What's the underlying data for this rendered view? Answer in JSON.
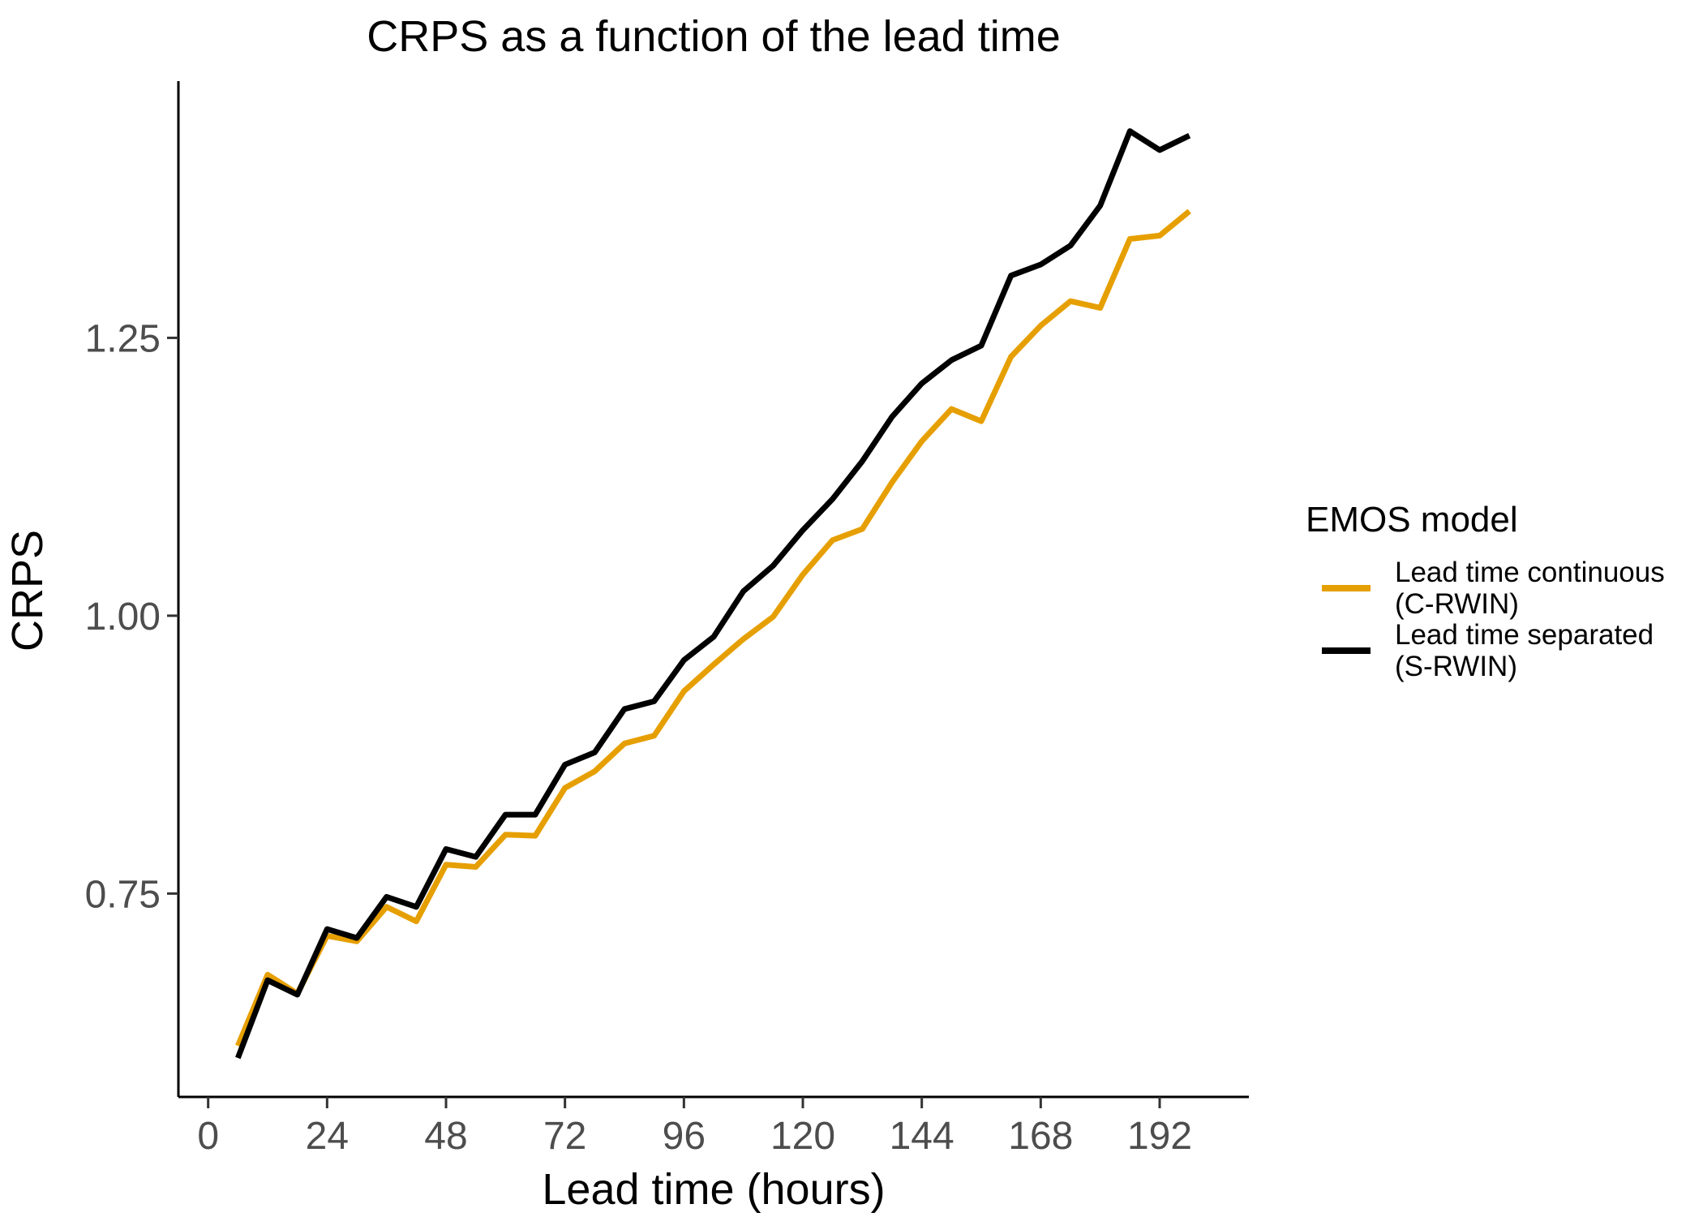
{
  "chart_data": {
    "type": "line",
    "title": "CRPS as a function of the lead time",
    "xlabel": "Lead time (hours)",
    "ylabel": "CRPS",
    "xlim": [
      -6,
      210
    ],
    "ylim": [
      0.567,
      1.481
    ],
    "x_ticks": [
      0,
      24,
      48,
      72,
      96,
      120,
      144,
      168,
      192
    ],
    "x_tick_labels": [
      "0",
      "24",
      "48",
      "72",
      "96",
      "120",
      "144",
      "168",
      "192"
    ],
    "y_ticks": [
      0.75,
      1.0,
      1.25
    ],
    "y_tick_labels": [
      "0.75",
      "1.00",
      "1.25"
    ],
    "grid": false,
    "legend": {
      "title": "EMOS model",
      "placement": "right"
    },
    "x": [
      6,
      12,
      18,
      24,
      30,
      36,
      42,
      48,
      54,
      60,
      66,
      72,
      78,
      84,
      90,
      96,
      102,
      108,
      114,
      120,
      126,
      132,
      138,
      144,
      150,
      156,
      162,
      168,
      174,
      180,
      186,
      192,
      198
    ],
    "series": [
      {
        "name": "Lead time continuous\n(C-RWIN)",
        "name_lines": [
          "Lead time continuous",
          "(C-RWIN)"
        ],
        "color": "#E69F00",
        "values": [
          0.613,
          0.677,
          0.66,
          0.712,
          0.707,
          0.738,
          0.725,
          0.776,
          0.774,
          0.803,
          0.802,
          0.845,
          0.86,
          0.885,
          0.892,
          0.932,
          0.956,
          0.979,
          0.999,
          1.037,
          1.068,
          1.078,
          1.12,
          1.157,
          1.186,
          1.175,
          1.233,
          1.261,
          1.283,
          1.277,
          1.339,
          1.342,
          1.364
        ]
      },
      {
        "name": "Lead time separated\n(S-RWIN)",
        "name_lines": [
          "Lead time separated",
          "(S-RWIN)"
        ],
        "color": "#000000",
        "values": [
          0.602,
          0.672,
          0.659,
          0.718,
          0.71,
          0.747,
          0.738,
          0.79,
          0.783,
          0.821,
          0.821,
          0.866,
          0.877,
          0.916,
          0.923,
          0.96,
          0.981,
          1.022,
          1.045,
          1.077,
          1.105,
          1.139,
          1.179,
          1.209,
          1.23,
          1.243,
          1.306,
          1.316,
          1.333,
          1.369,
          1.436,
          1.419,
          1.432
        ]
      }
    ]
  }
}
